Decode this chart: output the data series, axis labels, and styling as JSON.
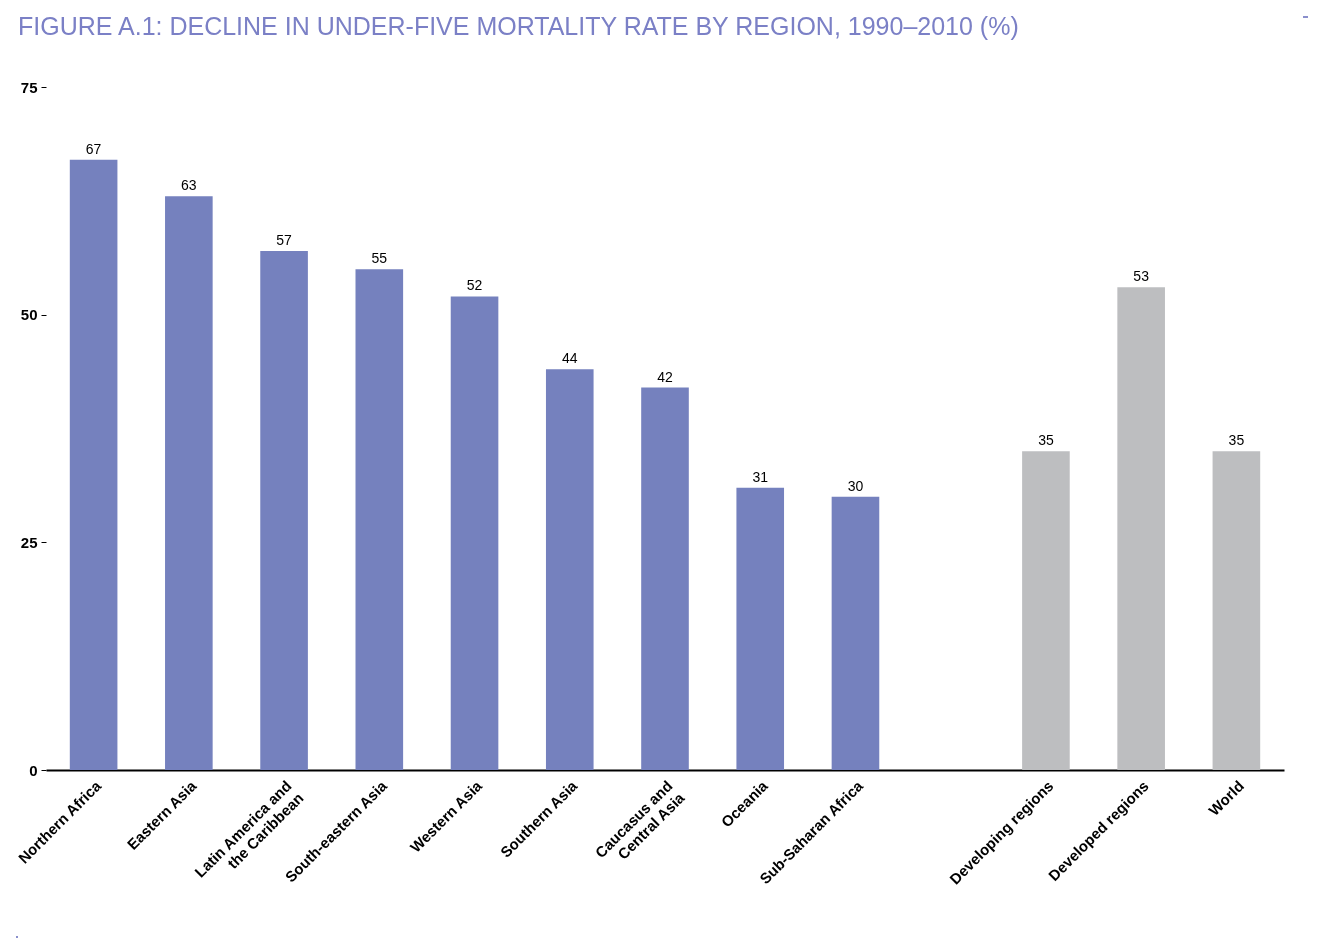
{
  "chart_data": {
    "type": "bar",
    "title": "FIGURE A.1: DECLINE IN UNDER-FIVE MORTALITY RATE BY REGION, 1990–2010 (%)",
    "categories": [
      "Northern Africa",
      "Eastern Asia",
      "Latin America and the Caribbean",
      "South-eastern Asia",
      "Western Asia",
      "Southern Asia",
      "Caucasus and Central Asia",
      "Oceania",
      "Sub-Saharan Africa",
      null,
      "Developing regions",
      "Developed regions",
      "World"
    ],
    "values": [
      67,
      63,
      57,
      55,
      52,
      44,
      42,
      31,
      30,
      null,
      35,
      53,
      35
    ],
    "colors": [
      "#7581be",
      "#7581be",
      "#7581be",
      "#7581be",
      "#7581be",
      "#7581be",
      "#7581be",
      "#7581be",
      "#7581be",
      "#7581be",
      "#bdbec0",
      "#bdbec0",
      "#bdbec0"
    ],
    "ylim": [
      0,
      75
    ],
    "yticks": [
      0,
      25,
      50,
      75
    ],
    "data_labels": true
  }
}
